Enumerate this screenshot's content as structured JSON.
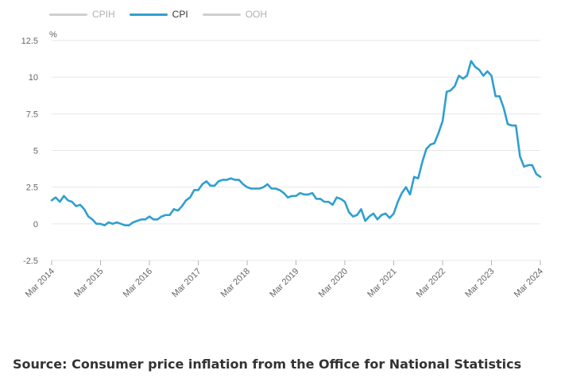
{
  "legend": [
    {
      "label": "CPIH",
      "active": false,
      "color": "#cfcfcf"
    },
    {
      "label": "CPI",
      "active": true,
      "color": "#2f9fcf"
    },
    {
      "label": "OOH",
      "active": false,
      "color": "#cfcfcf"
    }
  ],
  "chart_data": {
    "type": "line",
    "title": "",
    "unit_label": "%",
    "xlabel": "",
    "ylabel": "",
    "ylim": [
      -2.5,
      12.5
    ],
    "y_ticks": [
      -2.5,
      0,
      2.5,
      5,
      7.5,
      10,
      12.5
    ],
    "y_tick_labels": [
      "-2.5",
      "0",
      "2.5",
      "5",
      "7.5",
      "10",
      "12.5"
    ],
    "x_ticks": [
      "Mar 2014",
      "Mar 2015",
      "Mar 2016",
      "Mar 2017",
      "Mar 2018",
      "Mar 2019",
      "Mar 2020",
      "Mar 2021",
      "Mar 2022",
      "Mar 2023",
      "Mar 2024"
    ],
    "x_start": "Mar 2014",
    "x_end": "Mar 2024",
    "grid": true,
    "series": [
      {
        "name": "CPI",
        "color": "#2f9fcf",
        "values": [
          1.6,
          1.8,
          1.5,
          1.9,
          1.6,
          1.5,
          1.2,
          1.3,
          1.0,
          0.5,
          0.3,
          0.0,
          0.0,
          -0.1,
          0.1,
          0.0,
          0.1,
          0.0,
          -0.1,
          -0.1,
          0.1,
          0.2,
          0.3,
          0.3,
          0.5,
          0.3,
          0.3,
          0.5,
          0.6,
          0.6,
          1.0,
          0.9,
          1.2,
          1.6,
          1.8,
          2.3,
          2.3,
          2.7,
          2.9,
          2.6,
          2.6,
          2.9,
          3.0,
          3.0,
          3.1,
          3.0,
          3.0,
          2.7,
          2.5,
          2.4,
          2.4,
          2.4,
          2.5,
          2.7,
          2.4,
          2.4,
          2.3,
          2.1,
          1.8,
          1.9,
          1.9,
          2.1,
          2.0,
          2.0,
          2.1,
          1.7,
          1.7,
          1.5,
          1.5,
          1.3,
          1.8,
          1.7,
          1.5,
          0.8,
          0.5,
          0.6,
          1.0,
          0.2,
          0.5,
          0.7,
          0.3,
          0.6,
          0.7,
          0.4,
          0.7,
          1.5,
          2.1,
          2.5,
          2.0,
          3.2,
          3.1,
          4.2,
          5.1,
          5.4,
          5.5,
          6.2,
          7.0,
          9.0,
          9.1,
          9.4,
          10.1,
          9.9,
          10.1,
          11.1,
          10.7,
          10.5,
          10.1,
          10.4,
          10.1,
          8.7,
          8.7,
          7.9,
          6.8,
          6.7,
          6.7,
          4.6,
          3.9,
          4.0,
          4.0,
          3.4,
          3.2
        ]
      }
    ]
  },
  "source": "Source: Consumer price inflation from the Office for National Statistics"
}
